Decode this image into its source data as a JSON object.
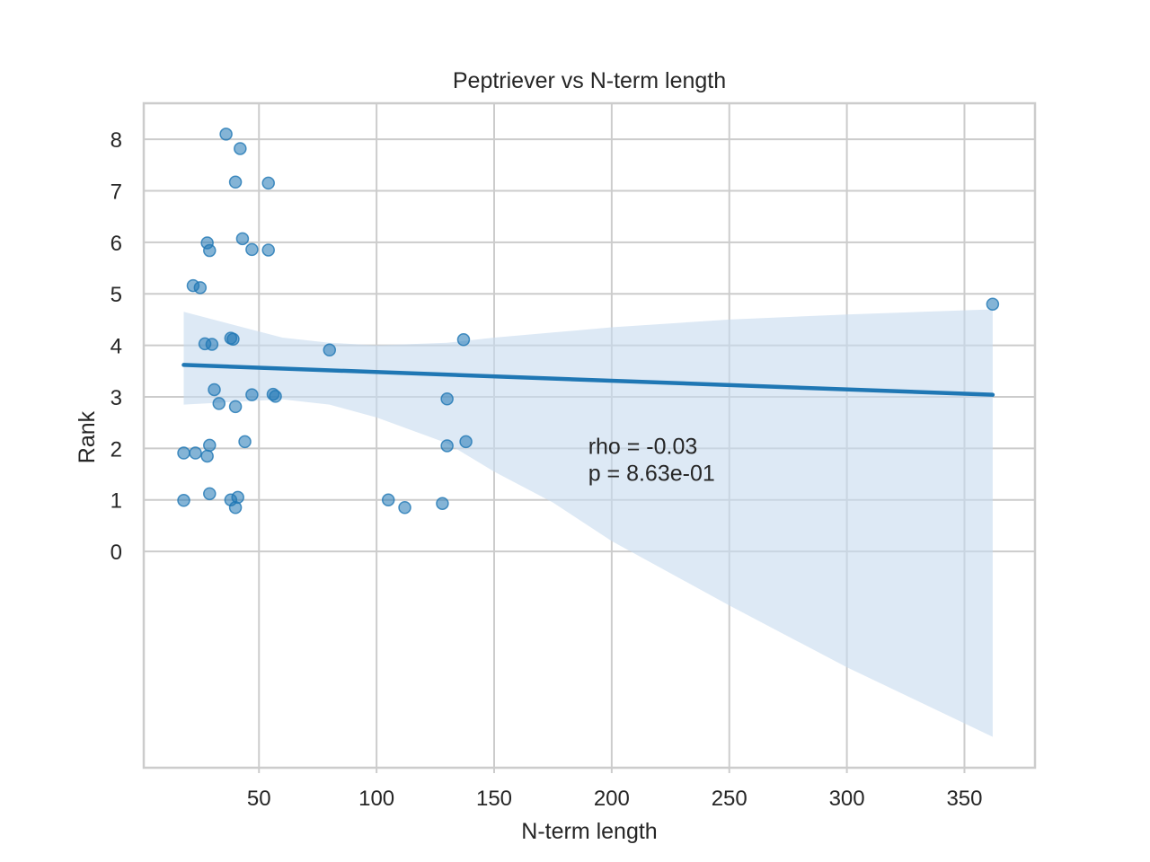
{
  "chart_data": {
    "type": "scatter",
    "title": "Peptriever vs N-term length",
    "xlabel": "N-term length",
    "ylabel": "Rank",
    "xlim": [
      1,
      380
    ],
    "ylim": [
      -4.2,
      8.7
    ],
    "x_ticks": [
      50,
      100,
      150,
      200,
      250,
      300,
      350
    ],
    "y_ticks": [
      0,
      1,
      2,
      3,
      4,
      5,
      6,
      7,
      8
    ],
    "grid": true,
    "colors": {
      "points": "#1f77b4",
      "line": "#1f77b4",
      "band": "#c6dbef"
    },
    "points": [
      {
        "x": 36,
        "y": 8.1
      },
      {
        "x": 42,
        "y": 7.82
      },
      {
        "x": 40,
        "y": 7.17
      },
      {
        "x": 54,
        "y": 7.15
      },
      {
        "x": 28,
        "y": 5.99
      },
      {
        "x": 29,
        "y": 5.84
      },
      {
        "x": 43,
        "y": 6.07
      },
      {
        "x": 47,
        "y": 5.86
      },
      {
        "x": 54,
        "y": 5.85
      },
      {
        "x": 22,
        "y": 5.16
      },
      {
        "x": 25,
        "y": 5.12
      },
      {
        "x": 362,
        "y": 4.8
      },
      {
        "x": 27,
        "y": 4.03
      },
      {
        "x": 30,
        "y": 4.02
      },
      {
        "x": 38,
        "y": 4.14
      },
      {
        "x": 39,
        "y": 4.12
      },
      {
        "x": 80,
        "y": 3.91
      },
      {
        "x": 137,
        "y": 4.11
      },
      {
        "x": 31,
        "y": 3.14
      },
      {
        "x": 33,
        "y": 2.87
      },
      {
        "x": 40,
        "y": 2.81
      },
      {
        "x": 47,
        "y": 3.04
      },
      {
        "x": 56,
        "y": 3.05
      },
      {
        "x": 57,
        "y": 3.01
      },
      {
        "x": 130,
        "y": 2.96
      },
      {
        "x": 18,
        "y": 1.91
      },
      {
        "x": 23,
        "y": 1.91
      },
      {
        "x": 28,
        "y": 1.85
      },
      {
        "x": 29,
        "y": 2.06
      },
      {
        "x": 44,
        "y": 2.13
      },
      {
        "x": 130,
        "y": 2.05
      },
      {
        "x": 138,
        "y": 2.13
      },
      {
        "x": 18,
        "y": 0.99
      },
      {
        "x": 29,
        "y": 1.12
      },
      {
        "x": 38,
        "y": 1.0
      },
      {
        "x": 40,
        "y": 0.85
      },
      {
        "x": 41,
        "y": 1.05
      },
      {
        "x": 105,
        "y": 1.0
      },
      {
        "x": 112,
        "y": 0.85
      },
      {
        "x": 128,
        "y": 0.93
      }
    ],
    "regression": {
      "x": [
        18,
        362
      ],
      "y": [
        3.62,
        3.04
      ]
    },
    "confidence_band": {
      "x": [
        18,
        60,
        80,
        100,
        130,
        150,
        175,
        200,
        250,
        300,
        362
      ],
      "upper": [
        4.65,
        4.15,
        4.05,
        4.0,
        4.05,
        4.15,
        4.25,
        4.35,
        4.5,
        4.6,
        4.7
      ],
      "lower": [
        2.85,
        2.95,
        2.85,
        2.6,
        2.1,
        1.55,
        0.95,
        0.2,
        -1.05,
        -2.25,
        -3.6
      ]
    },
    "annotation": {
      "line1": "rho = -0.03",
      "line2": "p = 8.63e-01",
      "x": 190,
      "y": 2.0
    }
  }
}
